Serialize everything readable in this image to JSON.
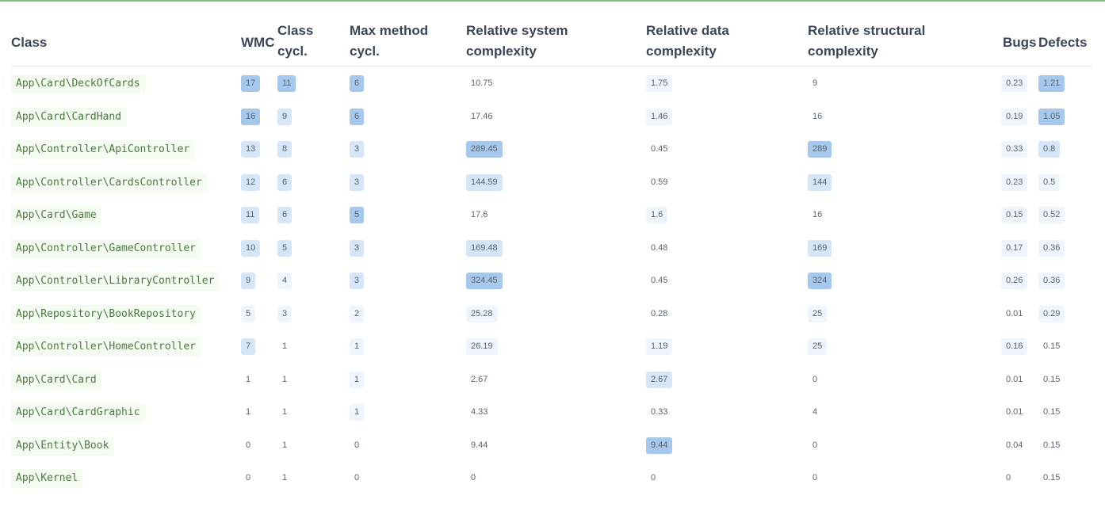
{
  "table": {
    "headers": {
      "class": "Class",
      "wmc": "WMC",
      "class_cycl": [
        "Class",
        "cycl."
      ],
      "max_method_cycl": [
        "Max method",
        "cycl."
      ],
      "rel_system": [
        "Relative system",
        "complexity"
      ],
      "rel_data": [
        "Relative data",
        "complexity"
      ],
      "rel_structural": [
        "Relative structural",
        "complexity"
      ],
      "bugs": "Bugs",
      "defects": "Defects"
    },
    "rows": [
      {
        "class": "App\\Card\\DeckOfCards",
        "wmc": "17",
        "cc": "11",
        "mmc": "6",
        "rsc": "10.75",
        "rdc": "1.75",
        "rstc": "9",
        "bugs": "0.23",
        "defects": "1.21"
      },
      {
        "class": "App\\Card\\CardHand",
        "wmc": "16",
        "cc": "9",
        "mmc": "6",
        "rsc": "17.46",
        "rdc": "1.46",
        "rstc": "16",
        "bugs": "0.19",
        "defects": "1.05"
      },
      {
        "class": "App\\Controller\\ApiController",
        "wmc": "13",
        "cc": "8",
        "mmc": "3",
        "rsc": "289.45",
        "rdc": "0.45",
        "rstc": "289",
        "bugs": "0.33",
        "defects": "0.8"
      },
      {
        "class": "App\\Controller\\CardsController",
        "wmc": "12",
        "cc": "6",
        "mmc": "3",
        "rsc": "144.59",
        "rdc": "0.59",
        "rstc": "144",
        "bugs": "0.23",
        "defects": "0.5"
      },
      {
        "class": "App\\Card\\Game",
        "wmc": "11",
        "cc": "6",
        "mmc": "5",
        "rsc": "17.6",
        "rdc": "1.6",
        "rstc": "16",
        "bugs": "0.15",
        "defects": "0.52"
      },
      {
        "class": "App\\Controller\\GameController",
        "wmc": "10",
        "cc": "5",
        "mmc": "3",
        "rsc": "169.48",
        "rdc": "0.48",
        "rstc": "169",
        "bugs": "0.17",
        "defects": "0.36"
      },
      {
        "class": "App\\Controller\\LibraryController",
        "wmc": "9",
        "cc": "4",
        "mmc": "3",
        "rsc": "324.45",
        "rdc": "0.45",
        "rstc": "324",
        "bugs": "0.26",
        "defects": "0.36"
      },
      {
        "class": "App\\Repository\\BookRepository",
        "wmc": "5",
        "cc": "3",
        "mmc": "2",
        "rsc": "25.28",
        "rdc": "0.28",
        "rstc": "25",
        "bugs": "0.01",
        "defects": "0.29"
      },
      {
        "class": "App\\Controller\\HomeController",
        "wmc": "7",
        "cc": "1",
        "mmc": "1",
        "rsc": "26.19",
        "rdc": "1.19",
        "rstc": "25",
        "bugs": "0.16",
        "defects": "0.15"
      },
      {
        "class": "App\\Card\\Card",
        "wmc": "1",
        "cc": "1",
        "mmc": "1",
        "rsc": "2.67",
        "rdc": "2.67",
        "rstc": "0",
        "bugs": "0.01",
        "defects": "0.15"
      },
      {
        "class": "App\\Card\\CardGraphic",
        "wmc": "1",
        "cc": "1",
        "mmc": "1",
        "rsc": "4.33",
        "rdc": "0.33",
        "rstc": "4",
        "bugs": "0.01",
        "defects": "0.15"
      },
      {
        "class": "App\\Entity\\Book",
        "wmc": "0",
        "cc": "1",
        "mmc": "0",
        "rsc": "9.44",
        "rdc": "9.44",
        "rstc": "0",
        "bugs": "0.04",
        "defects": "0.15"
      },
      {
        "class": "App\\Kernel",
        "wmc": "0",
        "cc": "1",
        "mmc": "0",
        "rsc": "0",
        "rdc": "0",
        "rstc": "0",
        "bugs": "0",
        "defects": "0.15"
      }
    ]
  },
  "colors": {
    "class_bg": "#f4fcf2",
    "class_text": "#4c7a40",
    "heat_low": "#eef5fc",
    "heat_mid": "#d5e6f8",
    "heat_high": "#a6c8ed",
    "top_border": "#7ec47e"
  }
}
